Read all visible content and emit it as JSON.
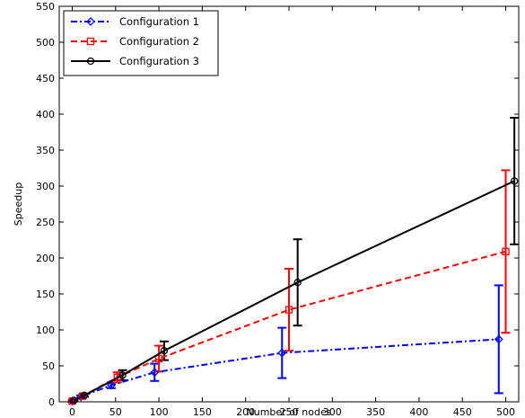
{
  "chart_data": {
    "type": "line",
    "xlabel": "Number of nodes",
    "ylabel": "Speedup",
    "xlim": [
      -15,
      515
    ],
    "ylim": [
      0,
      550
    ],
    "xticks": [
      0,
      50,
      100,
      150,
      200,
      250,
      300,
      350,
      400,
      450,
      500
    ],
    "yticks": [
      0,
      50,
      100,
      150,
      200,
      250,
      300,
      350,
      400,
      450,
      500,
      550
    ],
    "grid": false,
    "legend_position": "top-left",
    "series": [
      {
        "name": "Configuration 1",
        "color": "#0000ff",
        "line_style": "dash-dot",
        "marker": "diamond",
        "points": [
          {
            "x": 0,
            "y": 1,
            "err": 1
          },
          {
            "x": 10,
            "y": 7,
            "err": 2
          },
          {
            "x": 45,
            "y": 23,
            "err": 4
          },
          {
            "x": 95,
            "y": 41,
            "err": 12
          },
          {
            "x": 242,
            "y": 68,
            "err": 35
          },
          {
            "x": 492,
            "y": 87,
            "err": 75
          }
        ]
      },
      {
        "name": "Configuration 2",
        "color": "#ff0000",
        "line_style": "dashed",
        "marker": "square",
        "points": [
          {
            "x": 0,
            "y": 1,
            "err": 1
          },
          {
            "x": 12,
            "y": 8,
            "err": 2
          },
          {
            "x": 52,
            "y": 34,
            "err": 7
          },
          {
            "x": 100,
            "y": 60,
            "err": 18
          },
          {
            "x": 250,
            "y": 128,
            "err": 57
          },
          {
            "x": 500,
            "y": 209,
            "err": 113
          }
        ]
      },
      {
        "name": "Configuration 3",
        "color": "#000000",
        "line_style": "solid",
        "marker": "circle",
        "points": [
          {
            "x": 2,
            "y": 2,
            "err": 1
          },
          {
            "x": 14,
            "y": 9,
            "err": 2
          },
          {
            "x": 58,
            "y": 37,
            "err": 7
          },
          {
            "x": 106,
            "y": 71,
            "err": 13
          },
          {
            "x": 260,
            "y": 166,
            "err": 60
          },
          {
            "x": 510,
            "y": 307,
            "err": 88
          }
        ]
      }
    ]
  }
}
